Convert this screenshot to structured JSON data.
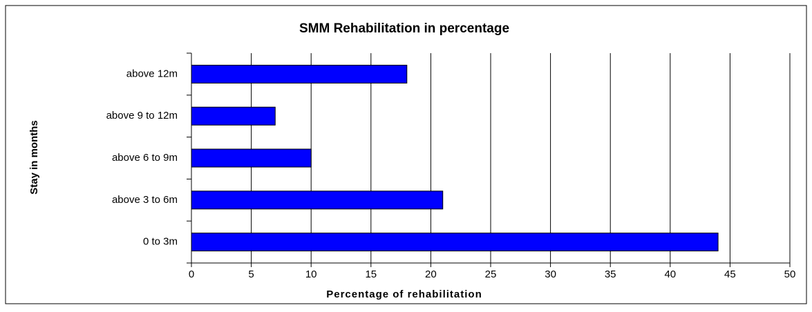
{
  "chart_data": {
    "type": "bar",
    "orientation": "horizontal",
    "title": "SMM Rehabilitation in percentage",
    "x_label": "Percentage of rehabilitation",
    "y_label": "Stay in months",
    "categories": [
      "above 12m",
      "above 9 to 12m",
      "above 6 to 9m",
      "above 3 to 6m",
      "0 to 3m"
    ],
    "values": [
      18,
      7,
      10,
      21,
      44
    ],
    "color": "#0000ff",
    "xlim": [
      0,
      50
    ],
    "xticks": [
      0,
      5,
      10,
      15,
      20,
      25,
      30,
      35,
      40,
      45,
      50
    ],
    "grid": true
  }
}
